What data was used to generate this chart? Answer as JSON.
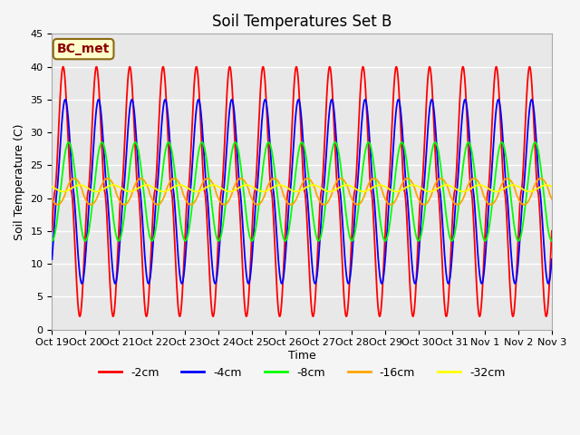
{
  "title": "Soil Temperatures Set B",
  "xlabel": "Time",
  "ylabel": "Soil Temperature (C)",
  "ylim": [
    0,
    45
  ],
  "series_labels": [
    "-2cm",
    "-4cm",
    "-8cm",
    "-16cm",
    "-32cm"
  ],
  "series_colors": [
    "red",
    "blue",
    "lime",
    "orange",
    "yellow"
  ],
  "annotation_label": "BC_met",
  "annotation_text_color": "#8b0000",
  "annotation_bg": "#ffffcc",
  "annotation_edge_color": "#8b6914",
  "plot_bg": "#e8e8e8",
  "fig_bg": "#f5f5f5",
  "xtick_labels": [
    "Oct 19",
    "Oct 20",
    "Oct 21",
    "Oct 22",
    "Oct 23",
    "Oct 24",
    "Oct 25",
    "Oct 26",
    "Oct 27",
    "Oct 28",
    "Oct 29",
    "Oct 30",
    "Oct 31",
    "Nov 1",
    "Nov 2",
    "Nov 3"
  ],
  "title_fontsize": 12,
  "axis_fontsize": 9,
  "tick_fontsize": 8,
  "legend_fontsize": 9,
  "grid_color": "white",
  "grid_linewidth": 1.0
}
